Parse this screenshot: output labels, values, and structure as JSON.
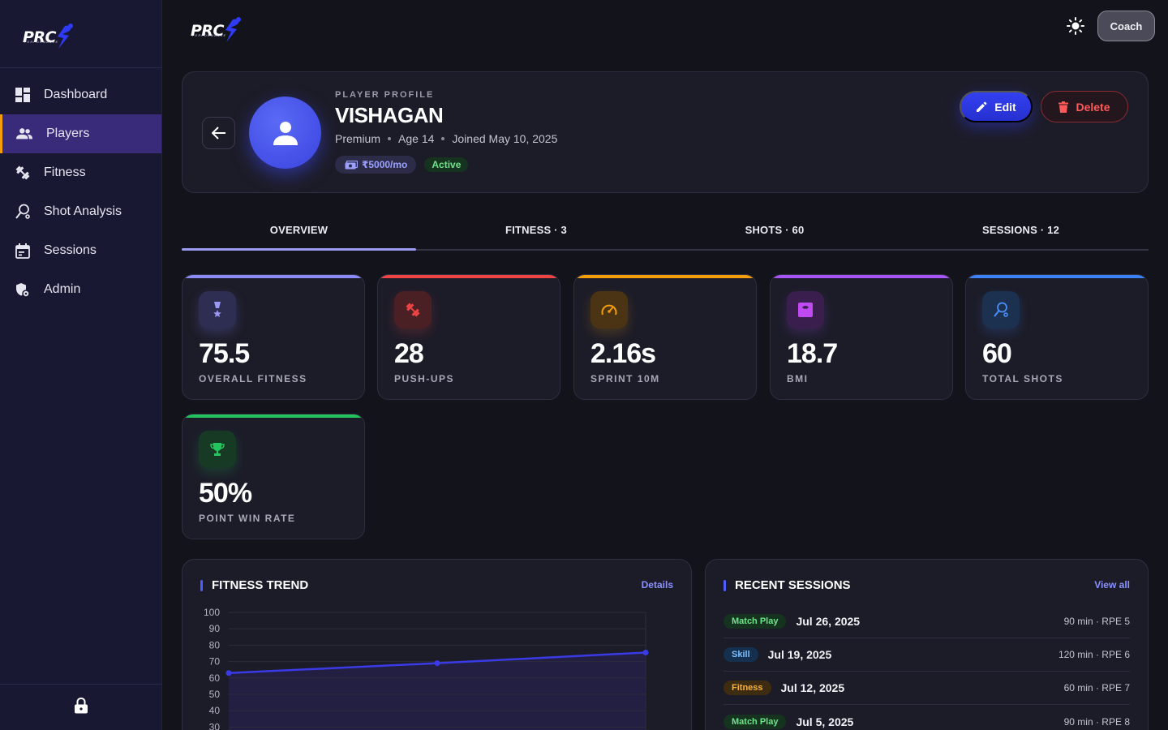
{
  "brand": {
    "logo_text": "PRC",
    "logo_sub": "PERFORMANCE"
  },
  "sidebar": {
    "items": [
      {
        "label": "Dashboard",
        "icon": "dashboard-icon"
      },
      {
        "label": "Players",
        "icon": "players-icon",
        "active": true
      },
      {
        "label": "Fitness",
        "icon": "fitness-icon"
      },
      {
        "label": "Shot Analysis",
        "icon": "shot-analysis-icon"
      },
      {
        "label": "Sessions",
        "icon": "calendar-icon"
      },
      {
        "label": "Admin",
        "icon": "admin-shield-icon"
      }
    ],
    "footer_icon": "lock-icon"
  },
  "topbar": {
    "theme_icon": "sun-icon",
    "role_button": "Coach"
  },
  "profile": {
    "kicker": "PLAYER PROFILE",
    "name": "VISHAGAN",
    "plan": "Premium",
    "age": "Age 14",
    "joined": "Joined May 10, 2025",
    "fee": "₹5000/mo",
    "status": "Active",
    "edit_label": "Edit",
    "delete_label": "Delete"
  },
  "tabs": [
    {
      "label": "OVERVIEW",
      "active": true
    },
    {
      "label": "FITNESS · 3"
    },
    {
      "label": "SHOTS · 60"
    },
    {
      "label": "SESSIONS · 12"
    }
  ],
  "stats": [
    {
      "value": "75.5",
      "label": "OVERALL FITNESS",
      "color": "#8b8bf5",
      "icon": "medal-icon"
    },
    {
      "value": "28",
      "label": "PUSH-UPS",
      "color": "#ef4444",
      "icon": "dumbbell-icon"
    },
    {
      "value": "2.16s",
      "label": "SPRINT 10M",
      "color": "#f59e0b",
      "icon": "speedometer-icon"
    },
    {
      "value": "18.7",
      "label": "BMI",
      "color": "#a855f7",
      "icon": "scale-icon"
    },
    {
      "value": "60",
      "label": "TOTAL SHOTS",
      "color": "#3b82f6",
      "icon": "racket-icon"
    },
    {
      "value": "50%",
      "label": "POINT WIN RATE",
      "color": "#22c55e",
      "icon": "trophy-icon"
    }
  ],
  "fitness_trend": {
    "title": "FITNESS TREND",
    "link": "Details",
    "chart_data": {
      "type": "line",
      "title": "FITNESS TREND",
      "y_ticks": [
        "100",
        "90",
        "80",
        "70",
        "60",
        "50",
        "40",
        "30"
      ],
      "ylim": [
        0,
        100
      ],
      "grid": true,
      "series": [
        {
          "values": [
            63,
            69,
            75.5
          ]
        }
      ],
      "color": "#3a3ae6"
    }
  },
  "recent_sessions": {
    "title": "RECENT SESSIONS",
    "link": "View all",
    "rows": [
      {
        "type": "Match Play",
        "date": "Jul 26, 2025",
        "info": "90 min · RPE 5",
        "tone": "green"
      },
      {
        "type": "Skill",
        "date": "Jul 19, 2025",
        "info": "120 min · RPE 6",
        "tone": "blue"
      },
      {
        "type": "Fitness",
        "date": "Jul 12, 2025",
        "info": "60 min · RPE 7",
        "tone": "amber"
      },
      {
        "type": "Match Play",
        "date": "Jul 5, 2025",
        "info": "90 min · RPE 8",
        "tone": "green"
      }
    ]
  }
}
